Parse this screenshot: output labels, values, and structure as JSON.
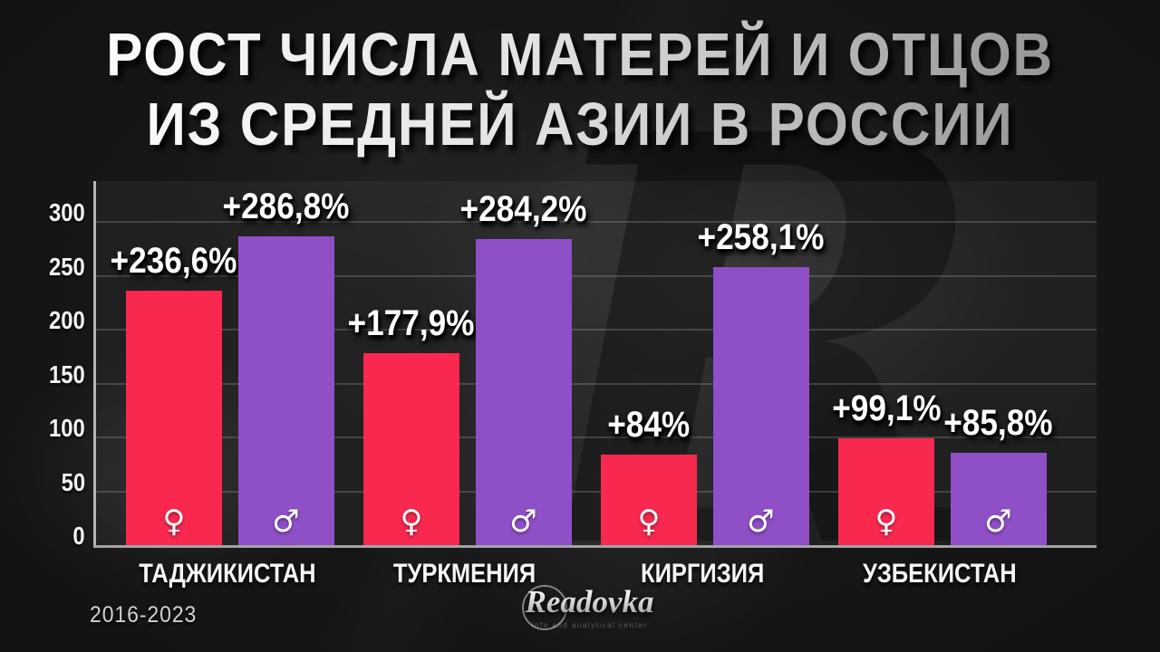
{
  "poster": {
    "title_lines": [
      "РОСТ ЧИСЛА МАТЕРЕЙ И ОТЦОВ",
      "ИЗ СРЕДНЕЙ АЗИИ В РОССИИ"
    ],
    "period": "2016-2023",
    "logo": {
      "text": "Readovka",
      "subtext": "info and analytical center"
    }
  },
  "colors": {
    "female_bar": "#f9284f",
    "male_bar": "#8e4fc7",
    "background": "#141414",
    "label_text": "#ffffff"
  },
  "chart_data": {
    "type": "bar",
    "title": "РОСТ ЧИСЛА МАТЕРЕЙ И ОТЦОВ ИЗ СРЕДНЕЙ АЗИИ В РОССИИ",
    "period": "2016-2023",
    "categories": [
      "ТАДЖИКИСТАН",
      "ТУРКМЕНИЯ",
      "КИРГИЗИЯ",
      "УЗБЕКИСТАН"
    ],
    "series": [
      {
        "name": "mothers",
        "symbol": "♀",
        "color": "#f9284f",
        "values": [
          236.6,
          177.9,
          84,
          99.1
        ],
        "labels": [
          "+236,6%",
          "+177,9%",
          "+84%",
          "+99,1%"
        ]
      },
      {
        "name": "fathers",
        "symbol": "♂",
        "color": "#8e4fc7",
        "values": [
          286.8,
          284.2,
          258.1,
          85.8
        ],
        "labels": [
          "+286,8%",
          "+284,2%",
          "+258,1%",
          "+85,8%"
        ]
      }
    ],
    "yticks": [
      0,
      50,
      100,
      150,
      200,
      250,
      300
    ],
    "ylim": [
      0,
      338
    ],
    "grid": true,
    "legend_position": "none",
    "xlabel": "",
    "ylabel": ""
  }
}
